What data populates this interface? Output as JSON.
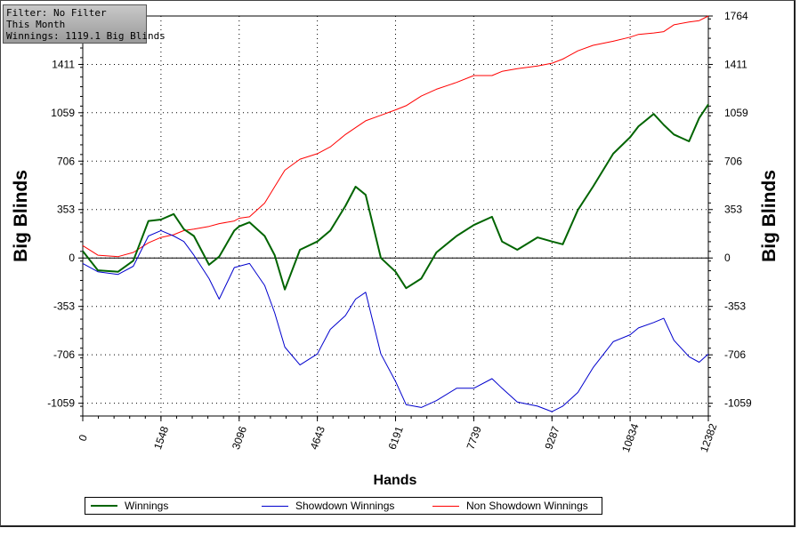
{
  "filter": {
    "line1": "Filter: No Filter",
    "line2": "This Month",
    "line3": "Winnings: 1119.1 Big Blinds"
  },
  "colors": {
    "winnings": "#006400",
    "showdown": "#0000cd",
    "non_showdown": "#ff0000"
  },
  "chart_data": {
    "type": "line",
    "xlabel": "Hands",
    "ylabel": "Big Blinds",
    "xlim": [
      0,
      12382
    ],
    "ylim": [
      -1152,
      1764
    ],
    "x_ticks": [
      "0",
      "1548",
      "3096",
      "4643",
      "6191",
      "7739",
      "9287",
      "10834",
      "12382"
    ],
    "y_ticks": [
      "1764",
      "1411",
      "1059",
      "706",
      "353",
      "0",
      "-353",
      "-706",
      "-1059"
    ],
    "grid": true,
    "legend": "bottom",
    "x": [
      0,
      300,
      700,
      1000,
      1300,
      1548,
      1800,
      2000,
      2200,
      2500,
      2700,
      3000,
      3096,
      3300,
      3600,
      3800,
      4000,
      4300,
      4643,
      4900,
      5200,
      5400,
      5600,
      5900,
      6191,
      6400,
      6700,
      7000,
      7400,
      7739,
      8100,
      8300,
      8600,
      9000,
      9287,
      9500,
      9800,
      10100,
      10500,
      10834,
      11000,
      11300,
      11500,
      11700,
      12000,
      12200,
      12382
    ],
    "series": [
      {
        "name": "Winnings",
        "values": [
          50,
          -90,
          -100,
          -20,
          270,
          280,
          320,
          210,
          160,
          -50,
          10,
          200,
          230,
          260,
          160,
          20,
          -230,
          60,
          120,
          200,
          380,
          520,
          460,
          0,
          -100,
          -220,
          -150,
          40,
          160,
          240,
          300,
          120,
          60,
          150,
          120,
          100,
          350,
          520,
          760,
          880,
          960,
          1050,
          970,
          900,
          850,
          1020,
          1120
        ]
      },
      {
        "name": "Showdown Winnings",
        "values": [
          -40,
          -100,
          -120,
          -60,
          160,
          200,
          160,
          120,
          20,
          -150,
          -300,
          -70,
          -60,
          -40,
          -200,
          -400,
          -650,
          -780,
          -700,
          -520,
          -420,
          -300,
          -250,
          -700,
          -900,
          -1070,
          -1090,
          -1040,
          -950,
          -950,
          -880,
          -950,
          -1050,
          -1080,
          -1120,
          -1080,
          -980,
          -800,
          -610,
          -560,
          -510,
          -470,
          -440,
          -600,
          -720,
          -760,
          -700
        ]
      },
      {
        "name": "Non Showdown Winnings",
        "values": [
          90,
          20,
          10,
          40,
          110,
          150,
          170,
          200,
          210,
          230,
          250,
          270,
          290,
          300,
          400,
          520,
          640,
          720,
          760,
          810,
          900,
          950,
          1000,
          1040,
          1080,
          1110,
          1180,
          1230,
          1280,
          1330,
          1330,
          1360,
          1380,
          1400,
          1420,
          1450,
          1510,
          1550,
          1580,
          1610,
          1630,
          1640,
          1650,
          1700,
          1720,
          1730,
          1764
        ]
      }
    ]
  }
}
